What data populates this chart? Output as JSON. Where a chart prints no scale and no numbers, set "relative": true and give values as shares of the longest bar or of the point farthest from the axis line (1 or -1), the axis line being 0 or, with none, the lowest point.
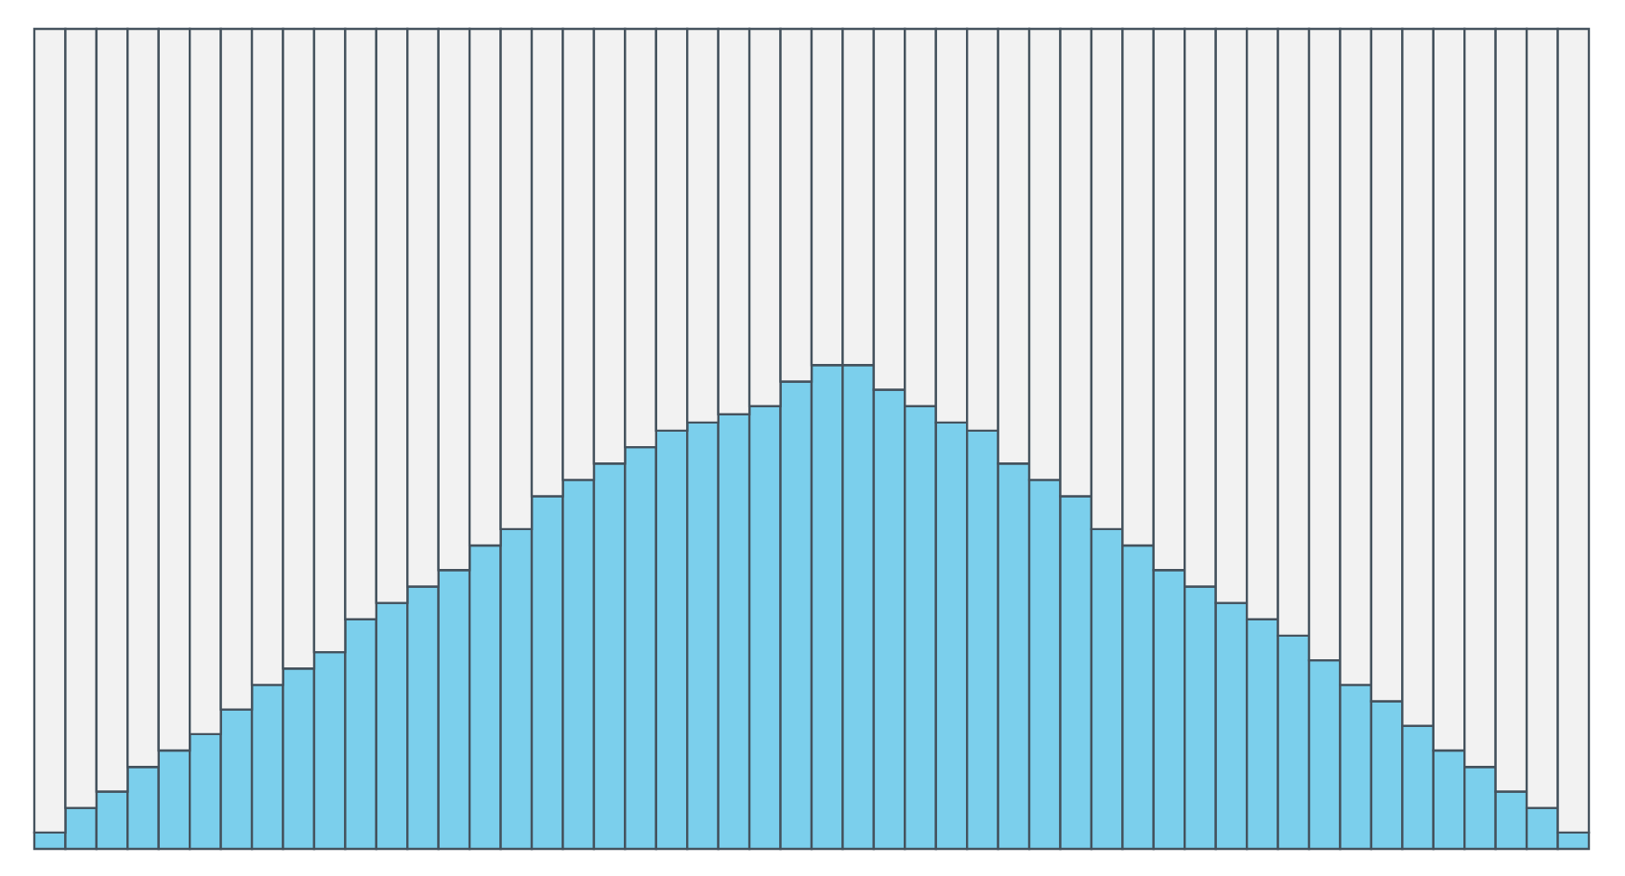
{
  "chart_data": {
    "type": "bar",
    "stacked": true,
    "relative": true,
    "categories": [
      null,
      null,
      null,
      null,
      null,
      null,
      null,
      null,
      null,
      null,
      null,
      null,
      null,
      null,
      null,
      null,
      null,
      null,
      null,
      null,
      null,
      null,
      null,
      null,
      null,
      null,
      null,
      null,
      null,
      null,
      null,
      null,
      null,
      null,
      null,
      null,
      null,
      null,
      null,
      null,
      null,
      null,
      null,
      null,
      null,
      null,
      null,
      null,
      null,
      null
    ],
    "series": [
      {
        "color": "#7bcfec",
        "values": [
          0.02,
          0.05,
          0.07,
          0.1,
          0.12,
          0.14,
          0.17,
          0.2,
          0.22,
          0.24,
          0.28,
          0.3,
          0.32,
          0.34,
          0.37,
          0.39,
          0.43,
          0.45,
          0.47,
          0.49,
          0.51,
          0.52,
          0.53,
          0.54,
          0.57,
          0.59,
          0.59,
          0.56,
          0.54,
          0.52,
          0.51,
          0.47,
          0.45,
          0.43,
          0.39,
          0.37,
          0.34,
          0.32,
          0.3,
          0.28,
          0.26,
          0.23,
          0.2,
          0.18,
          0.15,
          0.12,
          0.1,
          0.07,
          0.05,
          0.02
        ]
      },
      {
        "color": "#f2f2f2",
        "values": [
          0.98,
          0.95,
          0.93,
          0.9,
          0.88,
          0.86,
          0.83,
          0.8,
          0.78,
          0.76,
          0.72,
          0.7,
          0.68,
          0.66,
          0.63,
          0.61,
          0.57,
          0.55,
          0.53,
          0.51,
          0.49,
          0.48,
          0.47,
          0.46,
          0.43,
          0.41,
          0.41,
          0.44,
          0.46,
          0.48,
          0.49,
          0.53,
          0.55,
          0.57,
          0.61,
          0.63,
          0.66,
          0.68,
          0.7,
          0.72,
          0.74,
          0.77,
          0.8,
          0.82,
          0.85,
          0.88,
          0.9,
          0.93,
          0.95,
          0.98
        ]
      }
    ]
  }
}
